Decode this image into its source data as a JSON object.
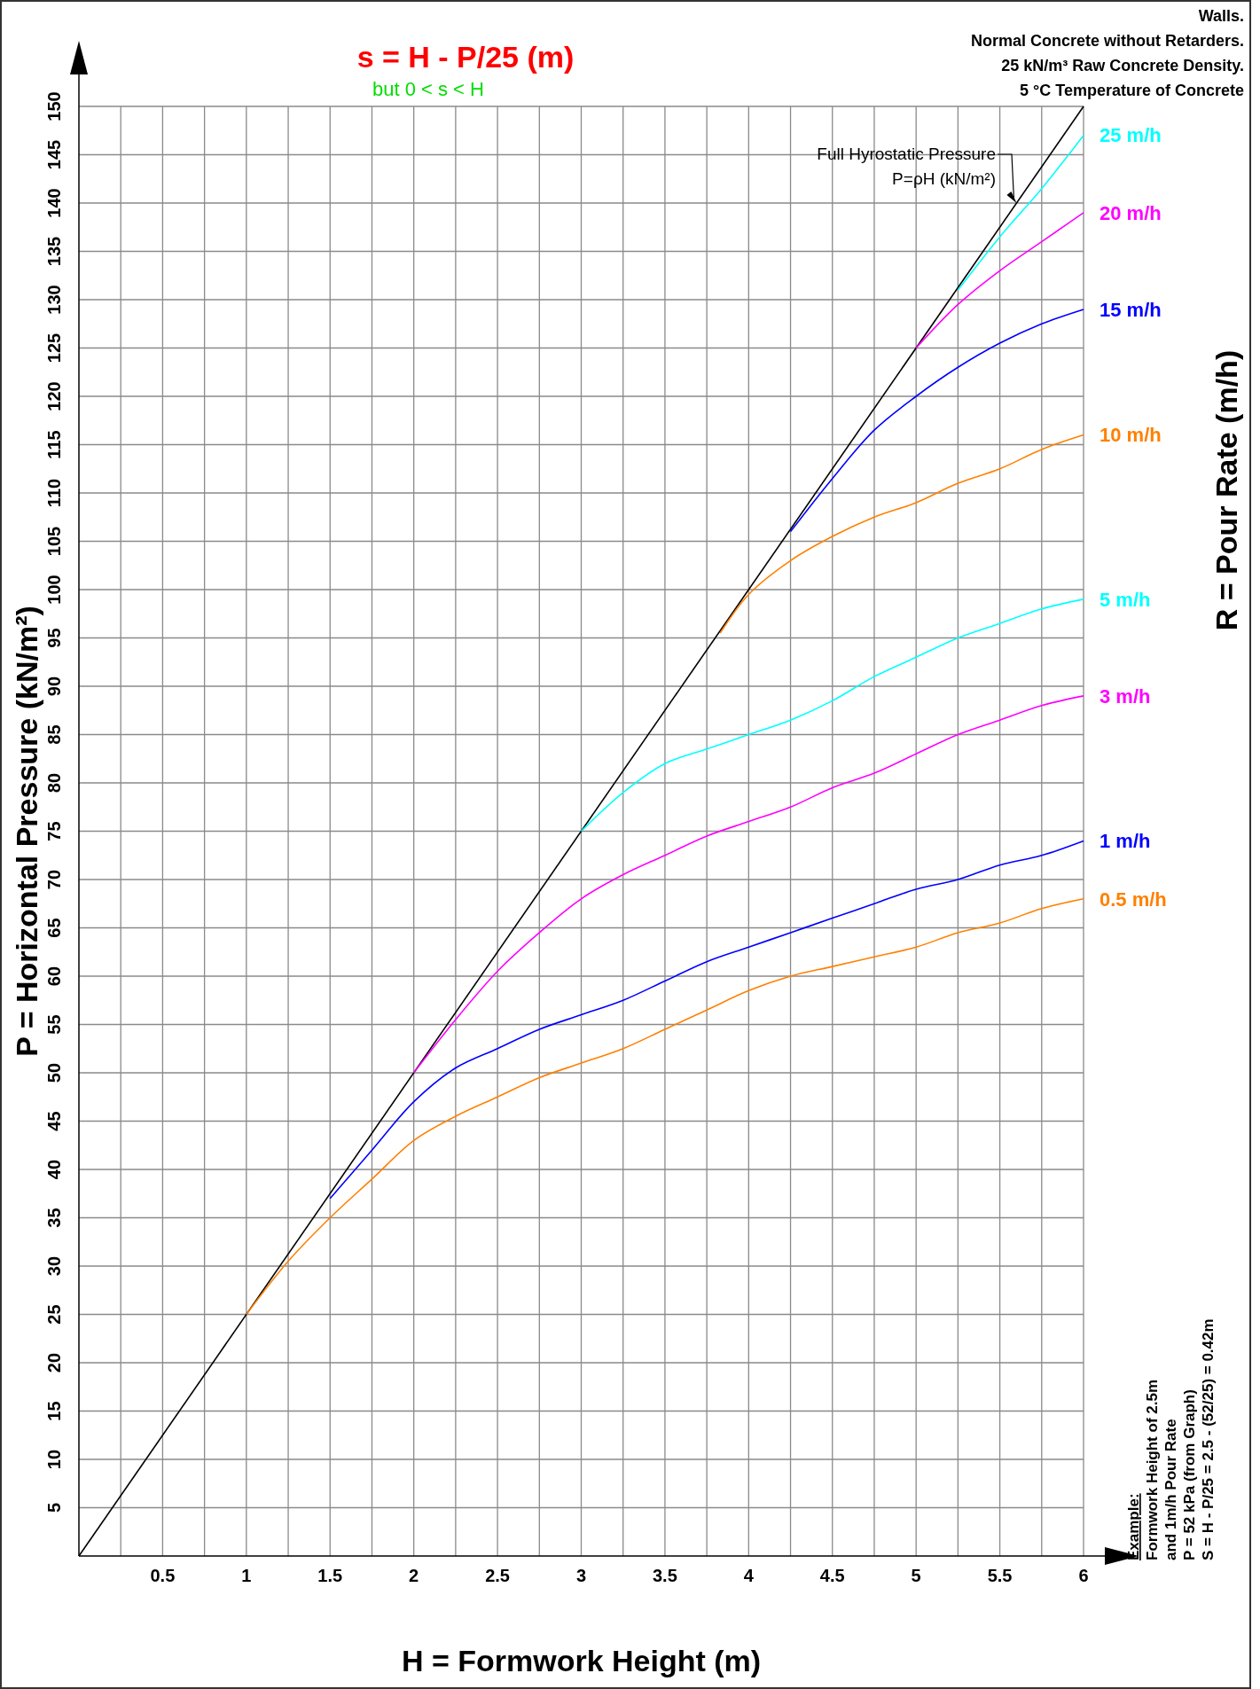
{
  "chart_data": {
    "type": "line",
    "title": "s = H - P/25 (m)",
    "subtitle": "but 0 < s < H",
    "xlabel": "H = Formwork Height (m)",
    "ylabel": "P = Horizontal Pressure (kN/m²)",
    "legend_title": "R = Pour Rate (m/h)",
    "annotations": [
      {
        "text": "Full Hyrostatic Pressure\nP=ρH (kN/m²)",
        "x": 5.6,
        "y": 140
      },
      "Walls.\nNormal Concrete without Retarders.\n25 kN/m³ Raw Concrete Density.\n5 °C Temperature of Concrete",
      "Example:\nFormwork Height of 2.5m\nand 1m/h Pour Rate\nP = 52 kPa (from Graph)\nS = H - P/25 = 2.5 - (52/25) = 0.42m"
    ],
    "xlim": [
      0,
      6
    ],
    "ylim": [
      0,
      150
    ],
    "xticks": [
      {
        "value": 0.25,
        "label": null
      },
      0.5,
      {
        "value": 0.75,
        "label": null
      },
      1,
      {
        "value": 1.25,
        "label": null
      },
      1.5,
      {
        "value": 1.75,
        "label": null
      },
      2,
      {
        "value": 2.25,
        "label": null
      },
      2.5,
      {
        "value": 2.75,
        "label": null
      },
      3,
      {
        "value": 3.25,
        "label": null
      },
      3.5,
      {
        "value": 3.75,
        "label": null
      },
      4,
      {
        "value": 4.25,
        "label": null
      },
      4.5,
      {
        "value": 4.75,
        "label": null
      },
      5,
      {
        "value": 5.25,
        "label": null
      },
      5.5,
      {
        "value": 5.75,
        "label": null
      },
      6
    ],
    "yticks": [
      5,
      10,
      15,
      20,
      25,
      30,
      35,
      40,
      45,
      50,
      55,
      60,
      65,
      70,
      75,
      80,
      85,
      90,
      95,
      100,
      105,
      110,
      115,
      120,
      125,
      130,
      135,
      140,
      145,
      150
    ],
    "grid": true,
    "legend": false,
    "marker": "none",
    "line_style": "solid",
    "series": [
      {
        "color": "#000000",
        "x": [
          0,
          6
        ],
        "values": [
          0,
          150
        ]
      },
      {
        "name": "0.5 m/h",
        "color": "#ff8000",
        "x": [
          1,
          1.25,
          1.5,
          1.75,
          2,
          2.25,
          2.5,
          2.75,
          3,
          3.25,
          3.5,
          3.75,
          4,
          4.25,
          4.5,
          4.75,
          5,
          5.25,
          5.5,
          5.75,
          6
        ],
        "values": [
          25,
          30.5,
          35,
          39,
          43,
          45.5,
          47.5,
          49.5,
          51,
          52.5,
          54.5,
          56.5,
          58.5,
          60,
          61,
          62,
          63,
          64.5,
          65.5,
          67,
          68
        ]
      },
      {
        "name": "1 m/h",
        "color": "#0000ff",
        "x": [
          1.5,
          1.75,
          2,
          2.25,
          2.5,
          2.75,
          3,
          3.25,
          3.5,
          3.75,
          4,
          4.25,
          4.5,
          4.75,
          5,
          5.25,
          5.5,
          5.75,
          6
        ],
        "values": [
          37,
          42,
          47,
          50.5,
          52.5,
          54.5,
          56,
          57.5,
          59.5,
          61.5,
          63,
          64.5,
          66,
          67.5,
          69,
          70,
          71.5,
          72.5,
          74
        ]
      },
      {
        "name": "3 m/h",
        "color": "#ff00ff",
        "x": [
          2,
          2.25,
          2.5,
          2.75,
          3,
          3.25,
          3.5,
          3.75,
          4,
          4.25,
          4.5,
          4.75,
          5,
          5.25,
          5.5,
          5.75,
          6
        ],
        "values": [
          50,
          55.5,
          60.5,
          64.5,
          68,
          70.5,
          72.5,
          74.5,
          76,
          77.5,
          79.5,
          81,
          83,
          85,
          86.5,
          88,
          89
        ]
      },
      {
        "name": "5 m/h",
        "color": "#00ffff",
        "x": [
          3,
          3.25,
          3.5,
          3.75,
          4,
          4.25,
          4.5,
          4.75,
          5,
          5.25,
          5.5,
          5.75,
          6
        ],
        "values": [
          75,
          79,
          82,
          83.5,
          85,
          86.5,
          88.5,
          91,
          93,
          95,
          96.5,
          98,
          99
        ]
      },
      {
        "name": "10 m/h",
        "color": "#ff8000",
        "x": [
          3.83,
          4,
          4.25,
          4.5,
          4.75,
          5,
          5.25,
          5.5,
          5.75,
          6
        ],
        "values": [
          95.5,
          99.5,
          103,
          105.5,
          107.5,
          109,
          111,
          112.5,
          114.5,
          116
        ]
      },
      {
        "name": "15 m/h",
        "color": "#0000ff",
        "x": [
          4.25,
          4.5,
          4.75,
          5,
          5.25,
          5.5,
          5.75,
          6
        ],
        "values": [
          106,
          111.5,
          116.5,
          120,
          123,
          125.5,
          127.5,
          129
        ]
      },
      {
        "name": "20 m/h",
        "color": "#ff00ff",
        "x": [
          5,
          5.25,
          5.5,
          5.75,
          6
        ],
        "values": [
          125,
          129.5,
          133,
          136,
          139
        ]
      },
      {
        "name": "25 m/h",
        "color": "#00ffff",
        "x": [
          5.25,
          5.5,
          5.75,
          6
        ],
        "values": [
          131,
          136.5,
          141.5,
          147
        ]
      }
    ]
  }
}
